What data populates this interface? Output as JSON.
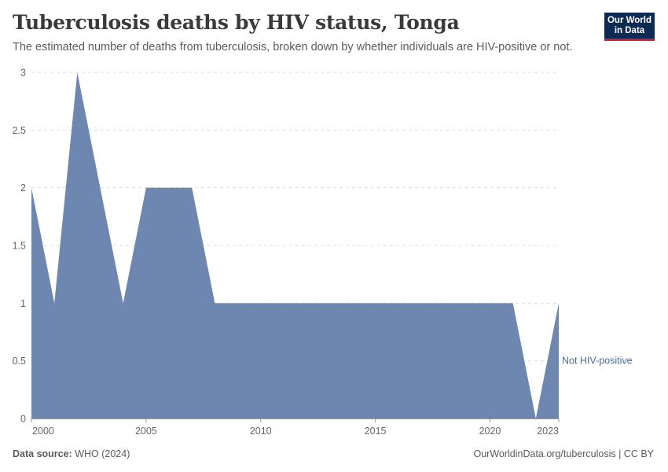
{
  "header": {
    "title": "Tuberculosis deaths by HIV status, Tonga",
    "subtitle": "The estimated number of deaths from tuberculosis, broken down by whether individuals are HIV-positive or not."
  },
  "logo": {
    "line1": "Our World",
    "line2": "in Data",
    "bg_color": "#0d2a54",
    "accent_color": "#c8202f"
  },
  "footer": {
    "source_label": "Data source:",
    "source_value": "WHO (2024)",
    "right_text": "OurWorldinData.org/tuberculosis | CC BY"
  },
  "chart_data": {
    "type": "area",
    "title": "Tuberculosis deaths by HIV status, Tonga",
    "x": [
      2000,
      2001,
      2002,
      2003,
      2004,
      2005,
      2006,
      2007,
      2008,
      2009,
      2010,
      2011,
      2012,
      2013,
      2014,
      2015,
      2016,
      2017,
      2018,
      2019,
      2020,
      2021,
      2022,
      2023
    ],
    "series": [
      {
        "name": "Not HIV-positive",
        "color": "#6d87b0",
        "values": [
          2,
          1,
          3,
          2,
          1,
          2,
          2,
          2,
          1,
          1,
          1,
          1,
          1,
          1,
          1,
          1,
          1,
          1,
          1,
          1,
          1,
          1,
          0,
          1
        ]
      }
    ],
    "xlim": [
      2000,
      2023
    ],
    "ylim": [
      0,
      3
    ],
    "x_ticks": [
      "2000",
      "2005",
      "2010",
      "2015",
      "2020",
      "2023"
    ],
    "y_ticks": [
      "0",
      "0.5",
      "1",
      "1.5",
      "2",
      "2.5",
      "3"
    ],
    "grid": "horizontal-dashed",
    "legend": "right-inline"
  }
}
